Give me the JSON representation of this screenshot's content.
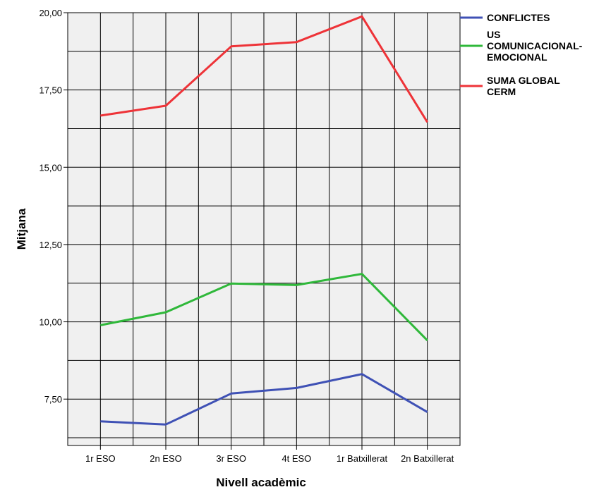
{
  "chart_data": {
    "type": "line",
    "categories": [
      "1r ESO",
      "2n ESO",
      "3r ESO",
      "4t ESO",
      "1r Batxillerat",
      "2n Batxillerat"
    ],
    "series": [
      {
        "name": "CONFLICTES",
        "color": "#3f51b5",
        "values": [
          6.78,
          6.68,
          7.68,
          7.86,
          8.31,
          7.08
        ]
      },
      {
        "name": "US COMUNICACIONAL-EMOCIONAL",
        "color": "#2fb83a",
        "values": [
          9.89,
          10.31,
          11.24,
          11.19,
          11.55,
          9.4
        ]
      },
      {
        "name": "SUMA GLOBAL CERM",
        "color": "#ee3338",
        "values": [
          16.67,
          16.99,
          18.91,
          19.05,
          19.88,
          16.46
        ]
      }
    ],
    "legend": [
      {
        "lines": [
          "CONFLICTES"
        ]
      },
      {
        "lines": [
          "US",
          "COMUNICACIONAL-",
          "EMOCIONAL"
        ]
      },
      {
        "lines": [
          "SUMA GLOBAL",
          "CERM"
        ]
      }
    ],
    "xlabel": "Nivell acadèmic",
    "ylabel": "Mitjana",
    "yticks": [
      20,
      17.5,
      15,
      12.5,
      10,
      7.5
    ],
    "ytick_labels": [
      "20,00",
      "17,50",
      "15,00",
      "12,50",
      "10,00",
      "7,50"
    ],
    "ylim": [
      6.0,
      20.0
    ],
    "grid": true,
    "legend_position": "top-right"
  }
}
